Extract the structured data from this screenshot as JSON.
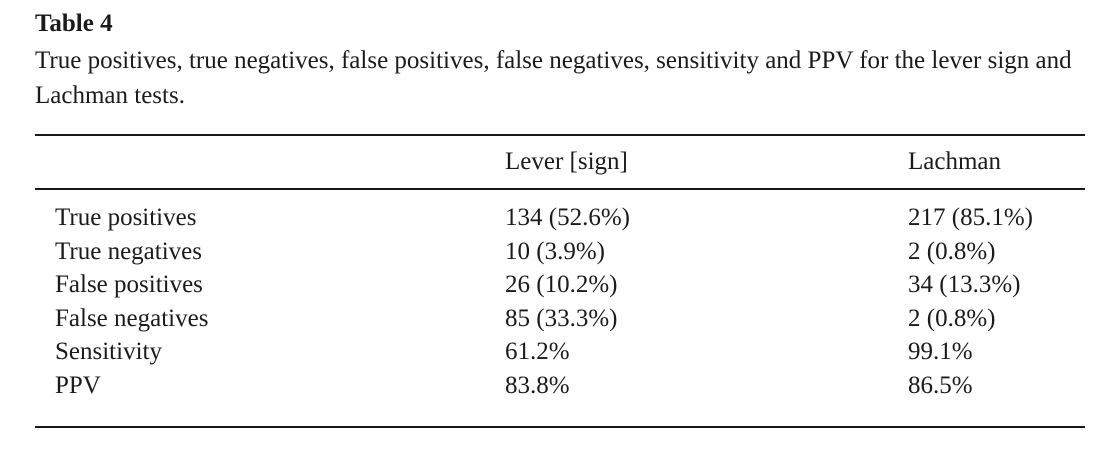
{
  "colors": {
    "text": "#1b1b1b",
    "rule": "#1a1a1a",
    "background": "#ffffff"
  },
  "table": {
    "label": "Table 4",
    "caption": "True positives, true negatives, false positives, false negatives, sensitivity and PPV for the lever sign and Lachman tests.",
    "columns": [
      "",
      "Lever [sign]",
      "Lachman"
    ],
    "rows": [
      {
        "metric": "True positives",
        "lever": "134 (52.6%)",
        "lachman": "217 (85.1%)"
      },
      {
        "metric": "True negatives",
        "lever": "10 (3.9%)",
        "lachman": "2 (0.8%)"
      },
      {
        "metric": "False positives",
        "lever": "26 (10.2%)",
        "lachman": "34 (13.3%)"
      },
      {
        "metric": "False negatives",
        "lever": "85 (33.3%)",
        "lachman": "2 (0.8%)"
      },
      {
        "metric": "Sensitivity",
        "lever": "61.2%",
        "lachman": "99.1%"
      },
      {
        "metric": "PPV",
        "lever": "83.8%",
        "lachman": "86.5%"
      }
    ]
  }
}
